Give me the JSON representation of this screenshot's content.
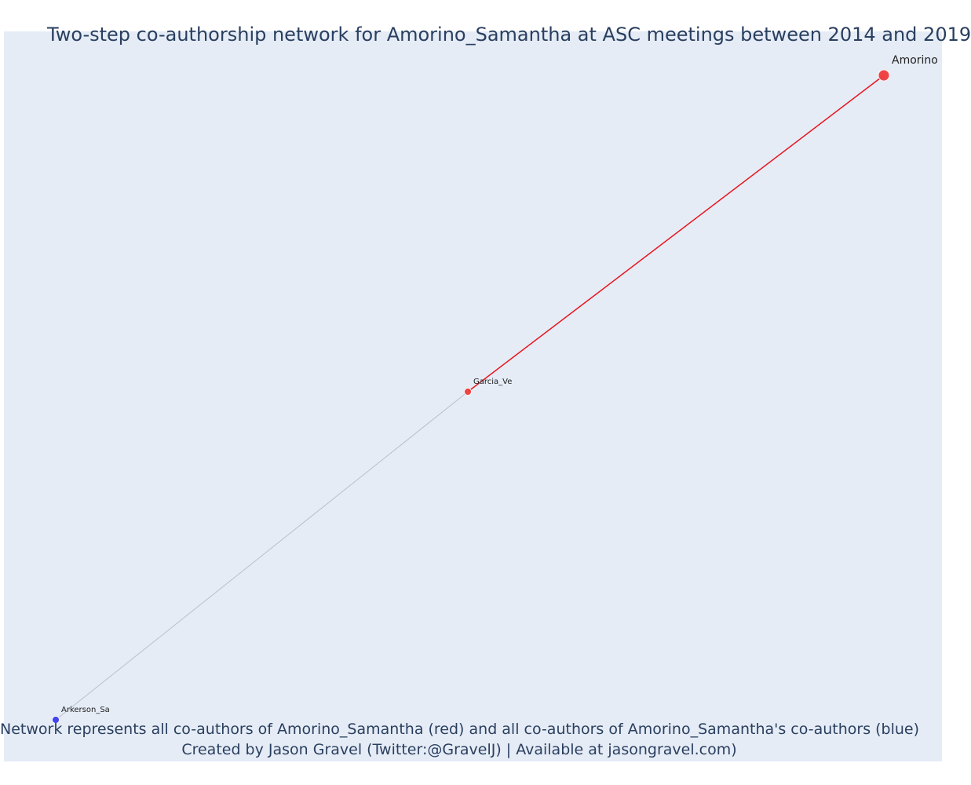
{
  "title": "Two-step co-authorship network for Amorino_Samantha at ASC meetings between 2014 and 2019",
  "caption": {
    "line1": "Network represents all co-authors of Amorino_Samantha (red) and all co-authors of Amorino_Samantha's co-authors (blue)",
    "line2": "Created by Jason Gravel (Twitter:@GravelJ) | Available at jasongravel.com)"
  },
  "colors": {
    "background": "#e5ecf6",
    "first_step": "#ef3b3b",
    "second_step": "#3b3bef",
    "first_step_edge": "#e8141d",
    "second_step_edge": "#b9bfcc",
    "title_text": "#2a3f5f"
  },
  "chart_data": {
    "type": "network",
    "nodes": [
      {
        "id": "Amorino_Samantha",
        "label": "Amorino",
        "group": "focal"
      },
      {
        "id": "Garcia_Ve",
        "label": "Garcia_Ve",
        "group": "co-author"
      },
      {
        "id": "Arkerson_Sa",
        "label": "Arkerson_Sa",
        "group": "co-author-of-co-author"
      }
    ],
    "edges": [
      {
        "source": "Amorino_Samantha",
        "target": "Garcia_Ve",
        "type": "first-step"
      },
      {
        "source": "Garcia_Ve",
        "target": "Arkerson_Sa",
        "type": "second-step"
      }
    ]
  }
}
